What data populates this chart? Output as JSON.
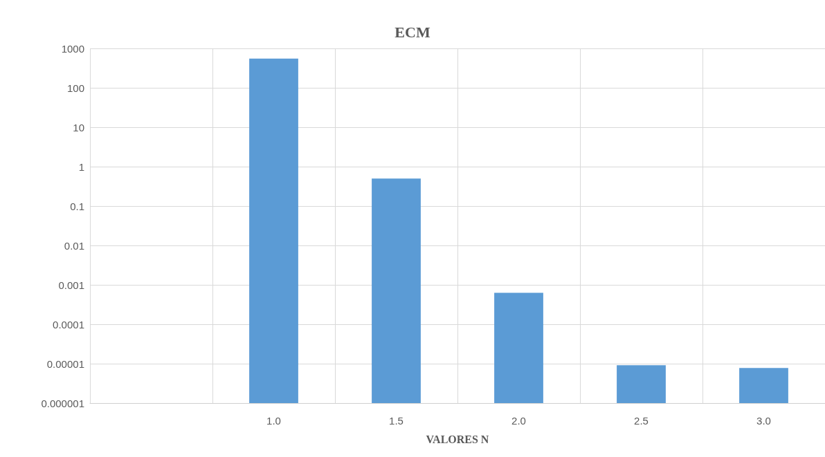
{
  "chart_data": {
    "type": "bar",
    "title": "ECM",
    "xlabel": "VALORES N",
    "categories": [
      null,
      "1.0",
      "1.5",
      "2.0",
      "2.5",
      "3.0"
    ],
    "values": [
      null,
      550,
      0.5,
      0.00063,
      9.1e-06,
      7.8e-06
    ],
    "color": "#5b9bd5",
    "log": "y",
    "ylim": [
      1e-06,
      1000
    ],
    "yticks": [
      {
        "value": 1e-06,
        "label": "0.000001"
      },
      {
        "value": 1e-05,
        "label": "0.00001"
      },
      0.0001,
      0.001,
      0.01,
      0.1,
      1,
      10,
      100,
      1000
    ],
    "grid": true
  }
}
